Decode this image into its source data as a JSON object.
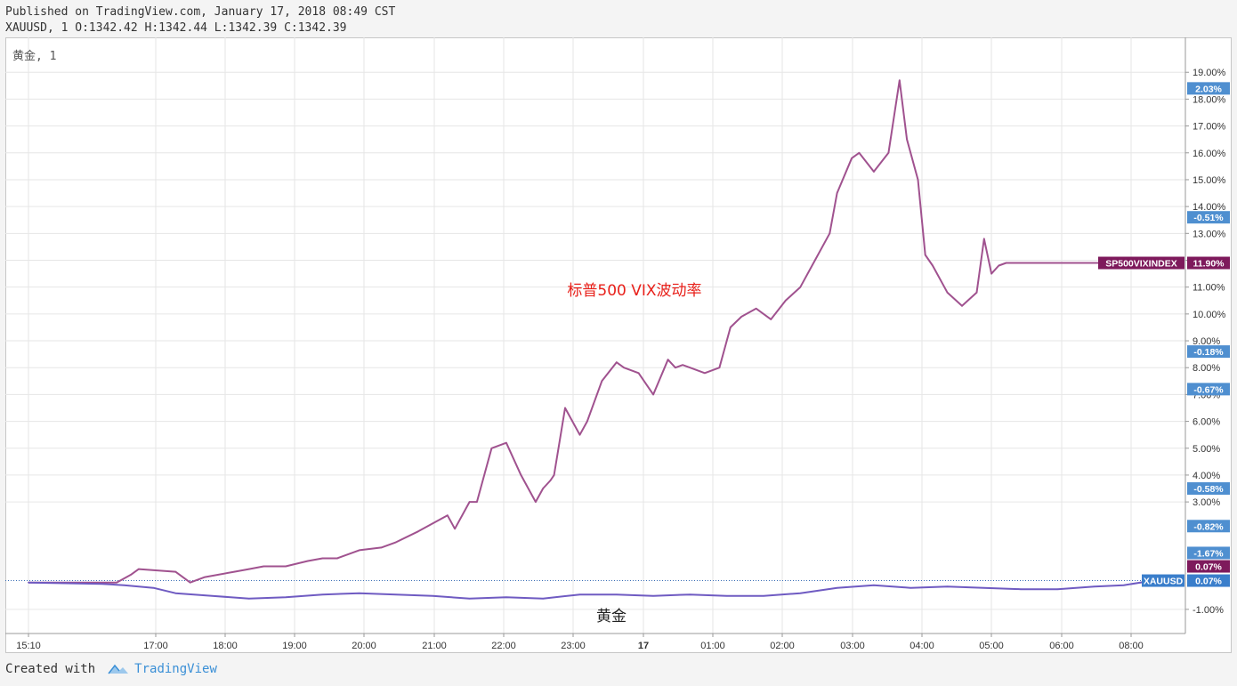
{
  "header": {
    "published": "Published on TradingView.com, January 17, 2018 08:49 CST",
    "ohlc": "XAUUSD, 1 O:1342.42 H:1342.44 L:1342.39 C:1342.39"
  },
  "pane_label": "黄金, 1",
  "footer": {
    "created_with": "Created with",
    "brand": "TradingView"
  },
  "chart_data": {
    "type": "line",
    "x_ticks": [
      "15:10",
      "17:00",
      "18:00",
      "19:00",
      "20:00",
      "21:00",
      "22:00",
      "23:00",
      "17",
      "01:00",
      "02:00",
      "03:00",
      "04:00",
      "05:00",
      "06:00",
      "08:00"
    ],
    "y_ticks": [
      "19.00%",
      "18.00%",
      "17.00%",
      "16.00%",
      "15.00%",
      "14.00%",
      "13.00%",
      "12.00%",
      "11.00%",
      "10.00%",
      "9.00%",
      "8.00%",
      "7.00%",
      "6.00%",
      "5.00%",
      "4.00%",
      "3.00%",
      "-1.00%"
    ],
    "ylim": [
      -1.9,
      20.3
    ],
    "grid": true,
    "annotations": [
      {
        "text": "标普500 VIX波动率",
        "color": "#e8201a",
        "at_percent": 11.0
      },
      {
        "text": "黄金",
        "color": "#222222",
        "at_percent": -1.0
      }
    ],
    "scale_badges": [
      {
        "text": "2.03%",
        "at": 18.4,
        "color": "#4f8fd0"
      },
      {
        "text": "-0.51%",
        "at": 13.6,
        "color": "#4f8fd0"
      },
      {
        "text": "-0.18%",
        "at": 8.6,
        "color": "#4f8fd0"
      },
      {
        "text": "-0.67%",
        "at": 7.2,
        "color": "#4f8fd0"
      },
      {
        "text": "-0.58%",
        "at": 3.5,
        "color": "#4f8fd0"
      },
      {
        "text": "-0.82%",
        "at": 2.1,
        "color": "#4f8fd0"
      },
      {
        "text": "-1.67%",
        "at": 1.1,
        "color": "#4f8fd0"
      },
      {
        "text": "0.07%",
        "at": 0.6,
        "color": "#7e1a5c"
      }
    ],
    "series": [
      {
        "name": "SP500VIXINDEX",
        "color": "#a0528f",
        "last_value": "11.90%",
        "badge_color": "#7e1a5c",
        "x": [
          0.0,
          1.2,
          1.4,
          1.5,
          2.0,
          2.2,
          2.4,
          2.8,
          3.0,
          3.2,
          3.5,
          3.8,
          4.0,
          4.2,
          4.5,
          4.8,
          5.0,
          5.3,
          5.5,
          5.7,
          5.8,
          6.0,
          6.1,
          6.3,
          6.5,
          6.7,
          6.9,
          7.0,
          7.1,
          7.15,
          7.3,
          7.5,
          7.6,
          7.8,
          8.0,
          8.1,
          8.3,
          8.5,
          8.7,
          8.8,
          8.9,
          9.0,
          9.2,
          9.4,
          9.55,
          9.7,
          9.9,
          10.1,
          10.3,
          10.5,
          10.7,
          10.9,
          11.0,
          11.2,
          11.3,
          11.5,
          11.7,
          11.85,
          11.95,
          12.1,
          12.2,
          12.3,
          12.5,
          12.7,
          12.9,
          13.0,
          13.1,
          13.2,
          13.3,
          15.3
        ],
        "values": [
          0.0,
          0.0,
          0.3,
          0.5,
          0.4,
          0.0,
          0.2,
          0.4,
          0.5,
          0.6,
          0.6,
          0.8,
          0.9,
          0.9,
          1.2,
          1.3,
          1.5,
          1.9,
          2.2,
          2.5,
          2.0,
          3.0,
          3.0,
          5.0,
          5.2,
          4.0,
          3.0,
          3.5,
          3.8,
          4.0,
          6.5,
          5.5,
          6.0,
          7.5,
          8.2,
          8.0,
          7.8,
          7.0,
          8.3,
          8.0,
          8.1,
          8.0,
          7.8,
          8.0,
          9.5,
          9.9,
          10.2,
          9.8,
          10.5,
          11.0,
          12.0,
          13.0,
          14.5,
          15.8,
          16.0,
          15.3,
          16.0,
          18.7,
          16.5,
          15.0,
          12.2,
          11.8,
          10.8,
          10.3,
          10.8,
          12.8,
          11.5,
          11.8,
          11.9,
          11.9
        ]
      },
      {
        "name": "XAUUSD",
        "color": "#6f5bc2",
        "last_value": "0.07%",
        "badge_color": "#3a7ecb",
        "x": [
          0.0,
          1.0,
          1.3,
          1.7,
          2.0,
          2.5,
          3.0,
          3.5,
          4.0,
          4.5,
          5.0,
          5.5,
          6.0,
          6.5,
          7.0,
          7.5,
          8.0,
          8.5,
          9.0,
          9.5,
          10.0,
          10.5,
          11.0,
          11.5,
          12.0,
          12.5,
          13.0,
          13.5,
          14.0,
          14.5,
          14.9,
          15.3
        ],
        "values": [
          0.0,
          -0.05,
          -0.1,
          -0.2,
          -0.4,
          -0.5,
          -0.6,
          -0.55,
          -0.45,
          -0.4,
          -0.45,
          -0.5,
          -0.6,
          -0.55,
          -0.6,
          -0.45,
          -0.45,
          -0.5,
          -0.45,
          -0.5,
          -0.5,
          -0.4,
          -0.2,
          -0.1,
          -0.2,
          -0.15,
          -0.2,
          -0.25,
          -0.25,
          -0.15,
          -0.1,
          0.07
        ]
      }
    ]
  }
}
